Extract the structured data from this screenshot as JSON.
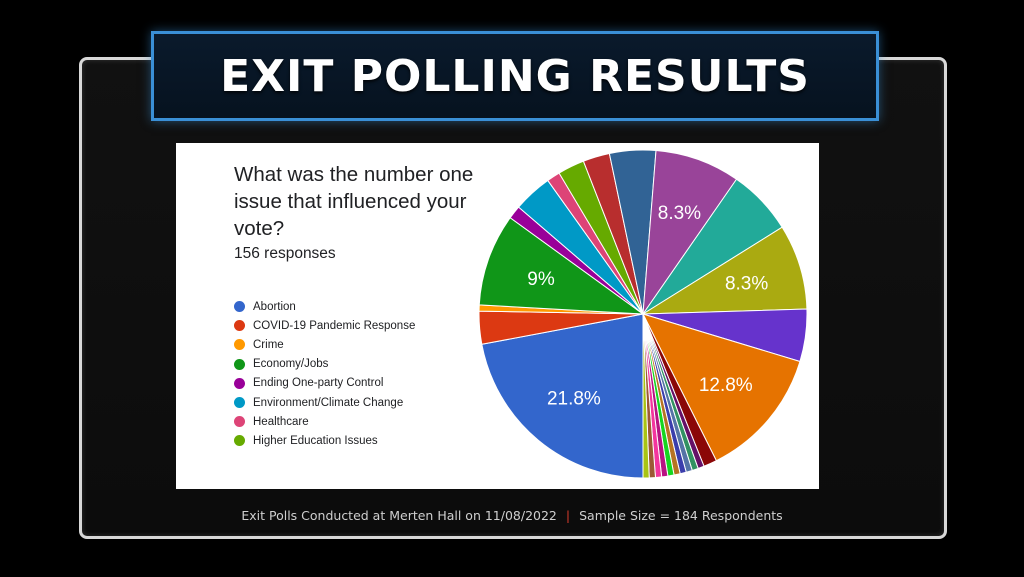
{
  "banner": {
    "title": "EXIT POLLING RESULTS"
  },
  "footer": {
    "left": "Exit Polls Conducted at Merten Hall on 11/08/2022",
    "separator": "|",
    "right": "Sample Size = 184 Respondents"
  },
  "chart_data": {
    "type": "pie",
    "title": "What was the number one issue that influenced your vote?",
    "subtitle": "156 responses",
    "legend_position": "left",
    "start_angle_deg": 90,
    "direction": "clockwise",
    "slices": [
      {
        "label": "Abortion",
        "value": 21.8,
        "color": "#3366cc",
        "display": "21.8%"
      },
      {
        "label": "COVID-19 Pandemic Response",
        "value": 3.2,
        "color": "#dc3912",
        "display": ""
      },
      {
        "label": "Crime",
        "value": 0.6,
        "color": "#ff9900",
        "display": ""
      },
      {
        "label": "Economy/Jobs",
        "value": 9.0,
        "color": "#109618",
        "display": "9%"
      },
      {
        "label": "Ending One-party Control",
        "value": 1.3,
        "color": "#990099",
        "display": ""
      },
      {
        "label": "Environment/Climate Change",
        "value": 3.8,
        "color": "#0099c6",
        "display": ""
      },
      {
        "label": "Healthcare",
        "value": 1.3,
        "color": "#dd4477",
        "display": ""
      },
      {
        "label": "Higher Education Issues",
        "value": 2.6,
        "color": "#66aa00",
        "display": ""
      },
      {
        "label": "",
        "value": 2.6,
        "color": "#b82e2e",
        "display": ""
      },
      {
        "label": "",
        "value": 4.5,
        "color": "#316395",
        "display": ""
      },
      {
        "label": "",
        "value": 8.3,
        "color": "#994499",
        "display": "8.3%"
      },
      {
        "label": "",
        "value": 6.4,
        "color": "#22aa99",
        "display": ""
      },
      {
        "label": "",
        "value": 8.3,
        "color": "#aaaa11",
        "display": "8.3%"
      },
      {
        "label": "",
        "value": 5.1,
        "color": "#6633cc",
        "display": ""
      },
      {
        "label": "",
        "value": 12.8,
        "color": "#e67300",
        "display": "12.8%"
      },
      {
        "label": "",
        "value": 1.3,
        "color": "#8b0707",
        "display": ""
      },
      {
        "label": "",
        "value": 0.6,
        "color": "#651067",
        "display": ""
      },
      {
        "label": "",
        "value": 0.6,
        "color": "#329262",
        "display": ""
      },
      {
        "label": "",
        "value": 0.6,
        "color": "#5574a6",
        "display": ""
      },
      {
        "label": "",
        "value": 0.6,
        "color": "#3b3eac",
        "display": ""
      },
      {
        "label": "",
        "value": 0.6,
        "color": "#b77322",
        "display": ""
      },
      {
        "label": "",
        "value": 0.6,
        "color": "#16d620",
        "display": ""
      },
      {
        "label": "",
        "value": 0.6,
        "color": "#b91383",
        "display": ""
      },
      {
        "label": "",
        "value": 0.6,
        "color": "#f4359e",
        "display": ""
      },
      {
        "label": "",
        "value": 0.6,
        "color": "#9c5935",
        "display": ""
      },
      {
        "label": "",
        "value": 0.6,
        "color": "#a9c413",
        "display": ""
      }
    ]
  }
}
